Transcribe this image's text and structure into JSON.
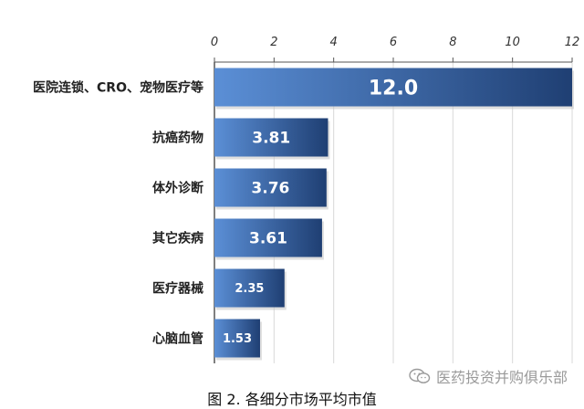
{
  "chart_data": {
    "type": "bar",
    "orientation": "horizontal",
    "categories": [
      "医院连锁、CRO、宠物医疗等",
      "抗癌药物",
      "体外诊断",
      "其它疾病",
      "医疗器械",
      "心脑血管"
    ],
    "values": [
      12.0,
      3.81,
      3.76,
      3.61,
      2.35,
      1.53
    ],
    "value_labels": [
      "12.0",
      "3.81",
      "3.76",
      "3.61",
      "2.35",
      "1.53"
    ],
    "xlim": [
      0,
      12
    ],
    "xticks": [
      0,
      2,
      4,
      6,
      8,
      10,
      12
    ],
    "xaxis_position": "top",
    "grid": true,
    "bar_color_light": "#5b8fd6",
    "bar_color_dark": "#1f3f73",
    "title": "",
    "xlabel": "",
    "ylabel": ""
  },
  "caption": "图 2. 各细分市场平均市值",
  "watermark": {
    "icon": "wechat-icon",
    "text": "医药投资并购俱乐部"
  }
}
